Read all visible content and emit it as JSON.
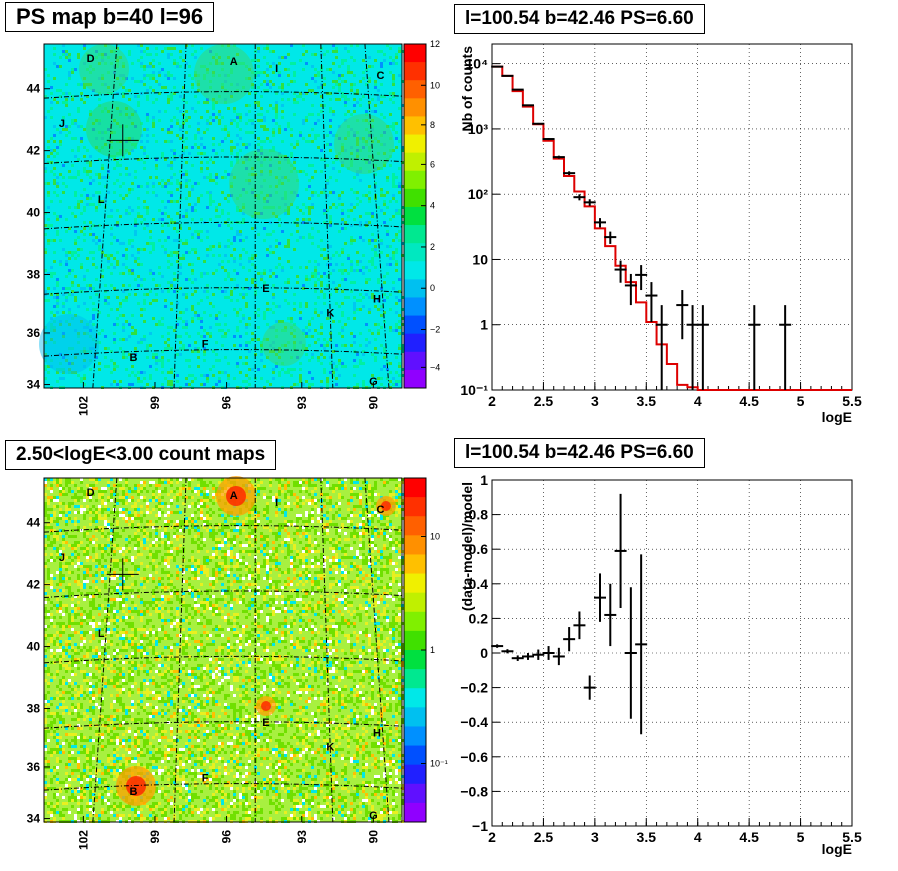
{
  "panels": {
    "top_left": {
      "title": "PS map b=40 l=96"
    },
    "top_right": {
      "title": "l=100.54 b=42.46 PS=6.60"
    },
    "bottom_left": {
      "title": "2.50<logE<3.00 count maps"
    },
    "bottom_right": {
      "title": "l=100.54 b=42.46 PS=6.60"
    }
  },
  "map_axes": {
    "x_ticks": [
      "102",
      "99",
      "96",
      "93",
      "90"
    ],
    "y_ticks": [
      "44",
      "42",
      "40",
      "38",
      "36",
      "34"
    ]
  },
  "source_labels": [
    "A",
    "B",
    "C",
    "D",
    "E",
    "F",
    "G",
    "H",
    "I",
    "J",
    "K",
    "L"
  ],
  "colorbars": {
    "ps": {
      "ticks": [
        "12",
        "10",
        "8",
        "6",
        "4",
        "2",
        "0",
        "−2",
        "−4"
      ],
      "range": [
        -5,
        12
      ]
    },
    "counts": {
      "ticks": [
        "10",
        "1",
        "10⁻¹"
      ],
      "scale": "log"
    }
  },
  "colors": {
    "ps_background": "#00e8e8",
    "counts_background": "#a8f040",
    "model_line": "#dd0000",
    "grid": "#000000"
  },
  "chart_data": [
    {
      "type": "line",
      "panel": "top_right",
      "title": "l=100.54 b=42.46 PS=6.60",
      "xlabel": "logE",
      "ylabel": "Nb of counts",
      "xlim": [
        2,
        5.5
      ],
      "ylim": [
        0.1,
        20000
      ],
      "yscale": "log",
      "grid": true,
      "x_ticks": [
        "2",
        "2.5",
        "3",
        "3.5",
        "4",
        "4.5",
        "5",
        "5.5"
      ],
      "y_ticks": [
        "10⁻¹",
        "1",
        "10",
        "10²",
        "10³",
        "10⁴"
      ],
      "series": [
        {
          "kind": "data_points",
          "x": [
            2.05,
            2.15,
            2.25,
            2.35,
            2.45,
            2.55,
            2.65,
            2.75,
            2.85,
            2.95,
            3.05,
            3.15,
            3.25,
            3.35,
            3.45,
            3.55,
            3.65,
            3.85,
            3.95,
            4.05,
            4.55,
            4.85
          ],
          "y": [
            9000,
            6500,
            4000,
            2300,
            1200,
            700,
            370,
            210,
            90,
            75,
            37,
            22,
            7,
            4,
            5.8,
            2.8,
            1,
            2,
            1,
            1,
            1,
            1
          ],
          "yerr": [
            95,
            80,
            63,
            48,
            35,
            26,
            19,
            14,
            9.5,
            8.7,
            6,
            4.7,
            2.6,
            2,
            2.4,
            1.7,
            1,
            1.4,
            1,
            1,
            1,
            1
          ]
        },
        {
          "kind": "model_step",
          "edges": [
            2.0,
            2.1,
            2.2,
            2.3,
            2.4,
            2.5,
            2.6,
            2.7,
            2.8,
            2.9,
            3.0,
            3.1,
            3.2,
            3.3,
            3.4,
            3.5,
            3.6,
            3.7,
            3.8,
            3.9,
            4.0,
            5.5
          ],
          "values": [
            9000,
            6500,
            3800,
            2200,
            1180,
            660,
            350,
            190,
            110,
            65,
            30,
            16,
            8,
            4.5,
            2.2,
            1.1,
            0.5,
            0.25,
            0.12,
            0.11,
            0.1
          ]
        }
      ]
    },
    {
      "type": "scatter",
      "panel": "bottom_right",
      "title": "l=100.54 b=42.46 PS=6.60",
      "xlabel": "logE",
      "ylabel": "(data-model)/model",
      "xlim": [
        2,
        5.5
      ],
      "ylim": [
        -1,
        1
      ],
      "grid": true,
      "x_ticks": [
        "2",
        "2.5",
        "3",
        "3.5",
        "4",
        "4.5",
        "5",
        "5.5"
      ],
      "y_ticks": [
        "1",
        "0.8",
        "0.6",
        "0.4",
        "0.2",
        "0",
        "−0.2",
        "−0.4",
        "−0.6",
        "−0.8",
        "−1"
      ],
      "series": [
        {
          "kind": "residuals",
          "x": [
            2.05,
            2.15,
            2.25,
            2.35,
            2.45,
            2.55,
            2.65,
            2.75,
            2.85,
            2.95,
            3.05,
            3.15,
            3.25,
            3.35,
            3.45
          ],
          "y": [
            0.04,
            0.01,
            -0.03,
            -0.02,
            -0.01,
            0.0,
            -0.02,
            0.08,
            0.16,
            -0.2,
            0.32,
            0.22,
            0.59,
            0.0,
            0.05
          ],
          "yerr": [
            0.01,
            0.012,
            0.016,
            0.02,
            0.03,
            0.04,
            0.05,
            0.07,
            0.08,
            0.07,
            0.14,
            0.18,
            0.33,
            0.38,
            0.52
          ]
        }
      ]
    }
  ]
}
